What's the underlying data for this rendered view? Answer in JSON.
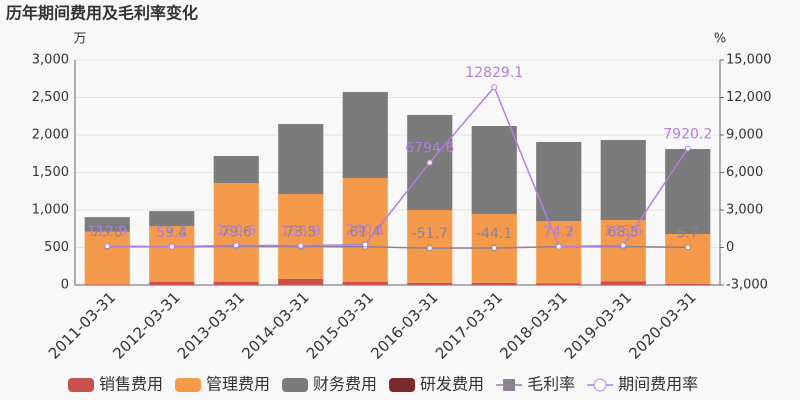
{
  "chart_data": {
    "type": "bar",
    "title": "历年期间费用及毛利率变化",
    "y_unit": "万",
    "y2_unit": "%",
    "categories": [
      "2011-03-31",
      "2012-03-31",
      "2013-03-31",
      "2014-03-31",
      "2015-03-31",
      "2016-03-31",
      "2017-03-31",
      "2018-03-31",
      "2019-03-31",
      "2020-03-31"
    ],
    "series": [
      {
        "name": "销售费用",
        "color": "#c9514f",
        "values": [
          10,
          40,
          40,
          80,
          40,
          30,
          30,
          20,
          50,
          15
        ]
      },
      {
        "name": "管理费用",
        "color": "#f59a4a",
        "values": [
          700,
          745,
          1320,
          1133,
          1387,
          970,
          917,
          833,
          817,
          665
        ]
      },
      {
        "name": "财务费用",
        "color": "#7b7b7b",
        "values": [
          195,
          200,
          360,
          934,
          1146,
          1267,
          1173,
          1054,
          1066,
          1133
        ]
      },
      {
        "name": "研发费用",
        "color": "#7a2a2a",
        "values": [
          0,
          0,
          0,
          0,
          0,
          0,
          0,
          0,
          0,
          0
        ]
      },
      {
        "name": "毛利率",
        "color": "#8d8093",
        "axis": "y2",
        "values": [
          73.8,
          59.4,
          79.6,
          73.5,
          61.4,
          -51.7,
          -44.1,
          74.2,
          68.5,
          5.7
        ]
      },
      {
        "name": "期间费用率",
        "color": "#b47ee0",
        "axis": "y2",
        "values": [
          112.9,
          55.2,
          180.6,
          153.9,
          240.1,
          6794.6,
          12829.1,
          74.1,
          165.5,
          7920.2
        ]
      }
    ],
    "ylim": [
      0,
      3000
    ],
    "yticks": [
      0,
      500,
      {
        "value": 1000,
        "label": "1,000"
      },
      {
        "value": 1500,
        "label": "1,500"
      },
      {
        "value": 2000,
        "label": "2,000"
      },
      {
        "value": 2500,
        "label": "2,500"
      },
      {
        "value": 3000,
        "label": "3,000"
      }
    ],
    "y2lim": [
      -3000,
      15000
    ],
    "y2ticks": [
      {
        "value": -3000,
        "label": "-3,000"
      },
      0,
      {
        "value": 3000,
        "label": "3,000"
      },
      {
        "value": 6000,
        "label": "6,000"
      },
      {
        "value": 9000,
        "label": "9,000"
      },
      {
        "value": 12000,
        "label": "12,000"
      },
      {
        "value": 15000,
        "label": "15,000"
      }
    ],
    "grid": true
  }
}
